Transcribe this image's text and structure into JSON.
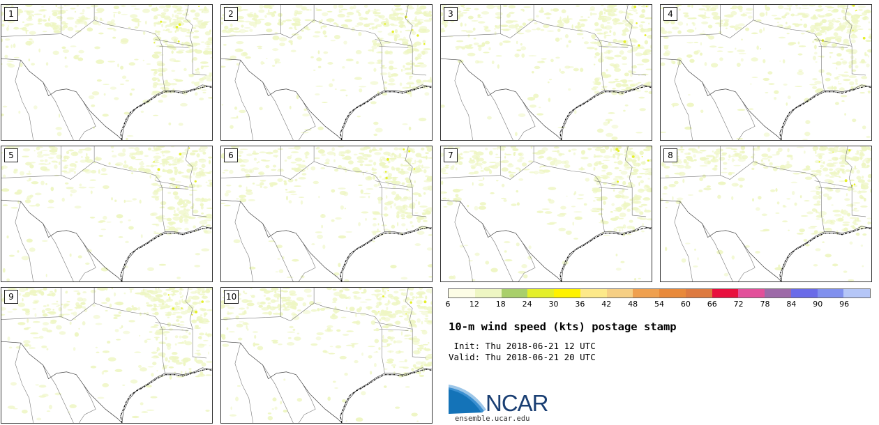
{
  "panels": [
    {
      "label": "1"
    },
    {
      "label": "2"
    },
    {
      "label": "3"
    },
    {
      "label": "4"
    },
    {
      "label": "5"
    },
    {
      "label": "6"
    },
    {
      "label": "7"
    },
    {
      "label": "8"
    },
    {
      "label": "9"
    },
    {
      "label": "10"
    }
  ],
  "colorbar": {
    "colors": [
      "#fdfde6",
      "#eef6c3",
      "#a9cf6b",
      "#e4ef2a",
      "#fff200",
      "#fde98a",
      "#f6cf84",
      "#efa04f",
      "#e8893a",
      "#dd7a40",
      "#e8103e",
      "#e2509a",
      "#9d6aa8",
      "#6a6be8",
      "#8090ee",
      "#b5c6f7"
    ],
    "ticks": [
      "6",
      "12",
      "18",
      "24",
      "30",
      "36",
      "42",
      "48",
      "54",
      "60",
      "66",
      "72",
      "78",
      "84",
      "90",
      "96"
    ]
  },
  "title": "10-m wind speed (kts) postage stamp",
  "init_text": " Init: Thu 2018-06-21 12 UTC",
  "valid_text": "Valid: Thu 2018-06-21 20 UTC",
  "logo": {
    "text": "NCAR",
    "url": "ensemble.ucar.edu",
    "color": "#1a3f73"
  }
}
